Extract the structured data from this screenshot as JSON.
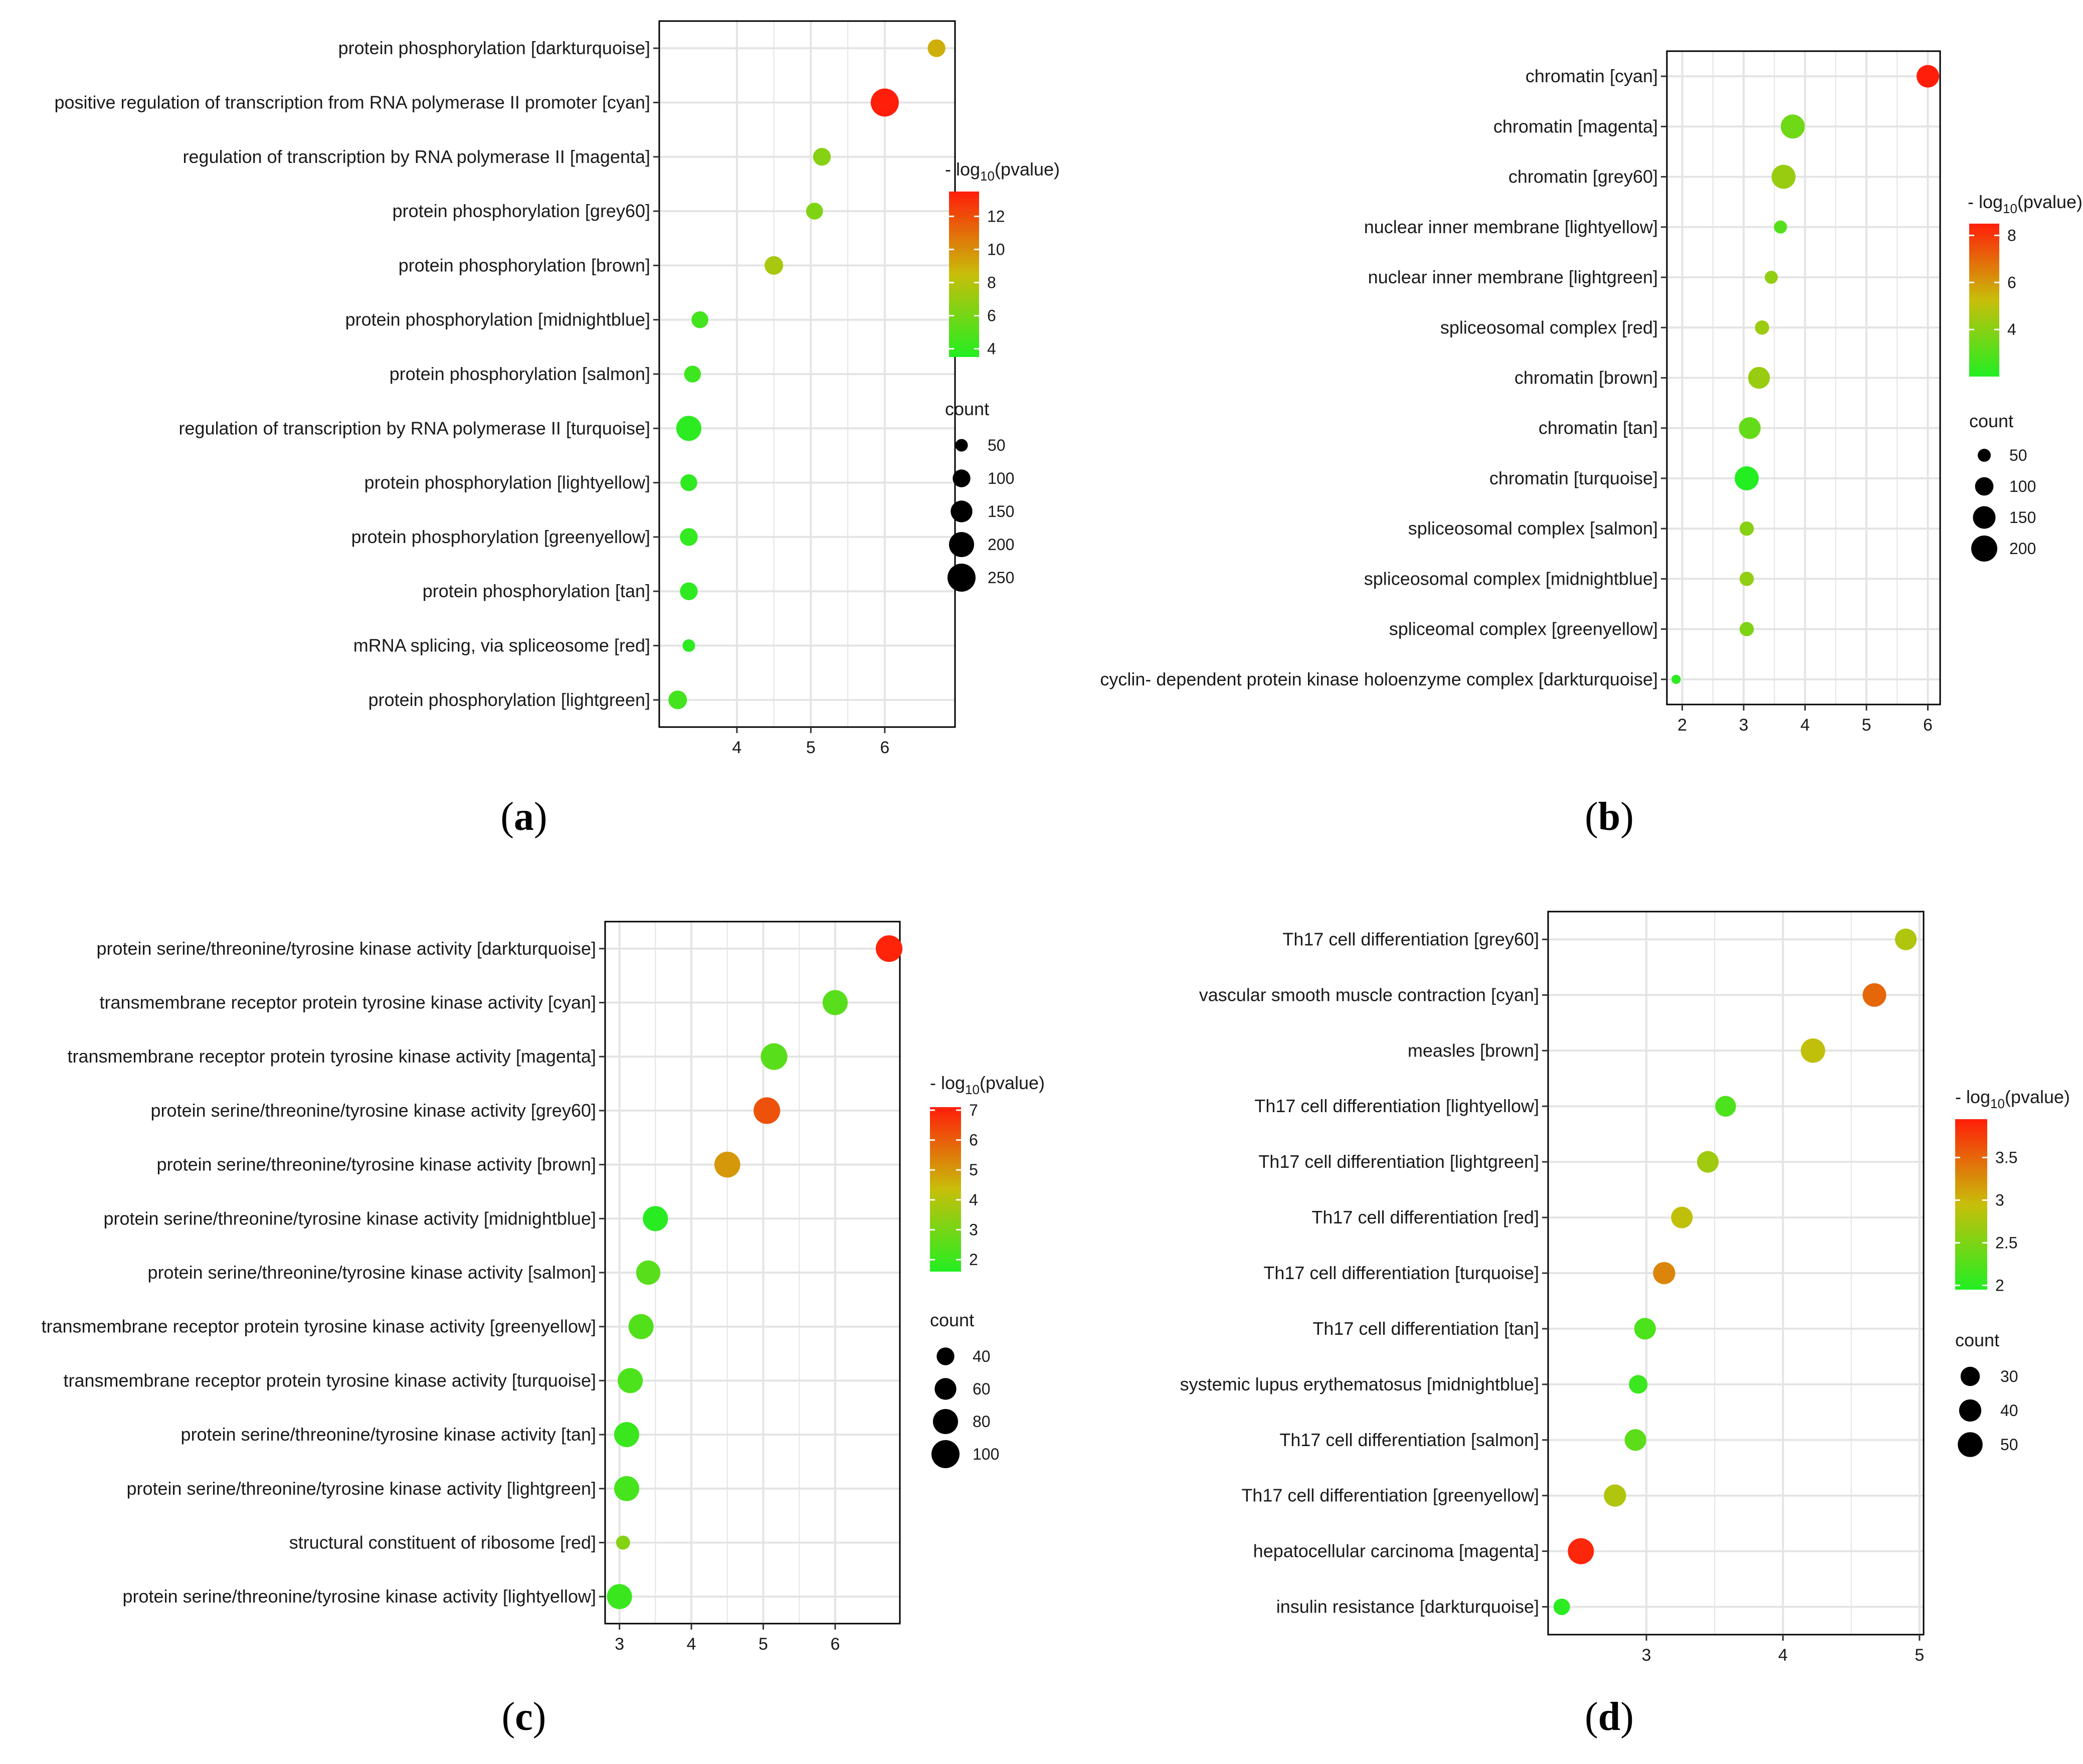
{
  "figure": {
    "label_paren_open": "(",
    "label_paren_close": ")"
  },
  "legend_labels": {
    "color_title_prefix": "- log",
    "color_title_sub": "10",
    "color_title_suffix": "(pvalue)",
    "size_title": "count"
  },
  "colors": {
    "low": "#22ee22",
    "mid": "#c8be0a",
    "high": "#ff1e0a",
    "grid": "#e4e4e4",
    "panel_border": "#000000",
    "size_key_dot": "#000000"
  },
  "chart_data": [
    {
      "panel": "a",
      "type": "scatter",
      "terms": [
        "protein phosphorylation [darkturquoise]",
        "positive regulation of transcription from RNA polymerase II promoter [cyan]",
        "regulation of transcription by RNA polymerase II [magenta]",
        "protein phosphorylation [grey60]",
        "protein phosphorylation [brown]",
        "protein phosphorylation [midnightblue]",
        "protein phosphorylation [salmon]",
        "regulation of transcription by RNA polymerase II [turquoise]",
        "protein phosphorylation [lightyellow]",
        "protein phosphorylation [greenyellow]",
        "protein phosphorylation [tan]",
        "mRNA splicing, via spliceosome [red]",
        "protein phosphorylation [lightgreen]"
      ],
      "x": [
        6.7,
        6.0,
        5.15,
        5.05,
        4.5,
        3.5,
        3.4,
        3.35,
        3.35,
        3.35,
        3.35,
        3.35,
        3.2
      ],
      "pvalue_neglog10": [
        9.0,
        13.5,
        6.5,
        6.3,
        7.5,
        4.5,
        4.3,
        3.8,
        3.9,
        4.0,
        3.9,
        3.8,
        4.5
      ],
      "count": [
        100,
        250,
        100,
        90,
        110,
        90,
        90,
        200,
        90,
        100,
        100,
        50,
        110
      ],
      "xticks": [
        4,
        5,
        6
      ],
      "xlim": [
        2.95,
        6.95
      ],
      "color_legend": {
        "ticks": [
          4,
          6,
          8,
          10,
          12
        ],
        "range": [
          3.5,
          13.5
        ]
      },
      "size_legend": [
        50,
        100,
        150,
        200,
        250
      ]
    },
    {
      "panel": "b",
      "type": "scatter",
      "terms": [
        "chromatin [cyan]",
        "chromatin [magenta]",
        "chromatin [grey60]",
        "nuclear inner membrane [lightyellow]",
        "nuclear inner membrane [lightgreen]",
        "spliceosomal complex [red]",
        "chromatin [brown]",
        "chromatin [tan]",
        "chromatin [turquoise]",
        "spliceosomal complex [salmon]",
        "spliceosomal complex [midnightblue]",
        "spliceomal complex [greenyellow]",
        "cyclin- dependent protein kinase holoenzyme complex [darkturquoise]"
      ],
      "x": [
        6.0,
        3.8,
        3.65,
        3.6,
        3.45,
        3.3,
        3.25,
        3.1,
        3.05,
        3.05,
        3.05,
        3.05,
        1.9
      ],
      "pvalue_neglog10": [
        8.5,
        3.5,
        4.3,
        3.0,
        4.2,
        4.4,
        4.3,
        3.3,
        2.0,
        4.0,
        4.2,
        3.8,
        2.2
      ],
      "count": [
        150,
        170,
        170,
        50,
        50,
        60,
        140,
        140,
        170,
        60,
        60,
        60,
        25
      ],
      "xticks": [
        2,
        3,
        4,
        5,
        6
      ],
      "xlim": [
        1.75,
        6.2
      ],
      "color_legend": {
        "ticks": [
          4,
          6,
          8
        ],
        "range": [
          2.0,
          8.5
        ]
      },
      "size_legend": [
        50,
        100,
        150,
        200
      ]
    },
    {
      "panel": "c",
      "type": "scatter",
      "terms": [
        "protein serine/threonine/tyrosine kinase activity [darkturquoise]",
        "transmembrane receptor protein tyrosine kinase activity [cyan]",
        "transmembrane receptor protein tyrosine kinase activity [magenta]",
        "protein serine/threonine/tyrosine kinase activity [grey60]",
        "protein serine/threonine/tyrosine kinase activity [brown]",
        "protein serine/threonine/tyrosine kinase activity [midnightblue]",
        "protein serine/threonine/tyrosine kinase activity [salmon]",
        "transmembrane receptor protein tyrosine kinase activity [greenyellow]",
        "transmembrane receptor protein tyrosine kinase activity [turquoise]",
        "protein serine/threonine/tyrosine kinase activity [tan]",
        "protein serine/threonine/tyrosine kinase activity [lightgreen]",
        "structural constituent of ribosome [red]",
        "protein serine/threonine/tyrosine kinase activity [lightyellow]"
      ],
      "x": [
        6.75,
        6.0,
        5.15,
        5.05,
        4.5,
        3.5,
        3.4,
        3.3,
        3.15,
        3.1,
        3.1,
        3.05,
        3.0
      ],
      "pvalue_neglog10": [
        7.0,
        2.5,
        2.5,
        6.2,
        5.0,
        1.7,
        2.5,
        2.4,
        2.3,
        2.0,
        2.2,
        3.2,
        2.0
      ],
      "count": [
        90,
        80,
        90,
        90,
        85,
        80,
        75,
        80,
        80,
        80,
        80,
        25,
        80
      ],
      "xticks": [
        3,
        4,
        5,
        6
      ],
      "xlim": [
        2.8,
        6.9
      ],
      "color_legend": {
        "ticks": [
          2,
          3,
          4,
          5,
          6,
          7
        ],
        "range": [
          1.6,
          7.1
        ]
      },
      "size_legend": [
        40,
        60,
        80,
        100
      ]
    },
    {
      "panel": "d",
      "type": "scatter",
      "terms": [
        "Th17 cell differentiation [grey60]",
        "vascular smooth muscle contraction [cyan]",
        "measles [brown]",
        "Th17 cell differentiation [lightyellow]",
        "Th17 cell differentiation [lightgreen]",
        "Th17 cell differentiation [red]",
        "Th17 cell differentiation [turquoise]",
        "Th17 cell differentiation [tan]",
        "systemic lupus erythematosus [midnightblue]",
        "Th17 cell differentiation [salmon]",
        "Th17 cell differentiation [greenyellow]",
        "hepatocellular carcinoma [magenta]",
        "insulin resistance [darkturquoise]"
      ],
      "x": [
        4.9,
        4.67,
        4.22,
        3.58,
        3.45,
        3.26,
        3.13,
        2.99,
        2.94,
        2.92,
        2.77,
        2.52,
        2.38
      ],
      "pvalue_neglog10": [
        2.8,
        3.5,
        2.9,
        2.2,
        2.7,
        2.9,
        3.3,
        2.2,
        2.1,
        2.3,
        2.8,
        3.9,
        2.0
      ],
      "count": [
        38,
        45,
        48,
        35,
        38,
        38,
        40,
        38,
        28,
        38,
        40,
        55,
        22
      ],
      "xticks": [
        3,
        4,
        5
      ],
      "xlim": [
        2.28,
        5.03
      ],
      "color_legend": {
        "ticks": [
          2.0,
          2.5,
          3.0,
          3.5
        ],
        "range": [
          1.95,
          3.95
        ]
      },
      "size_legend": [
        30,
        40,
        50
      ]
    }
  ]
}
